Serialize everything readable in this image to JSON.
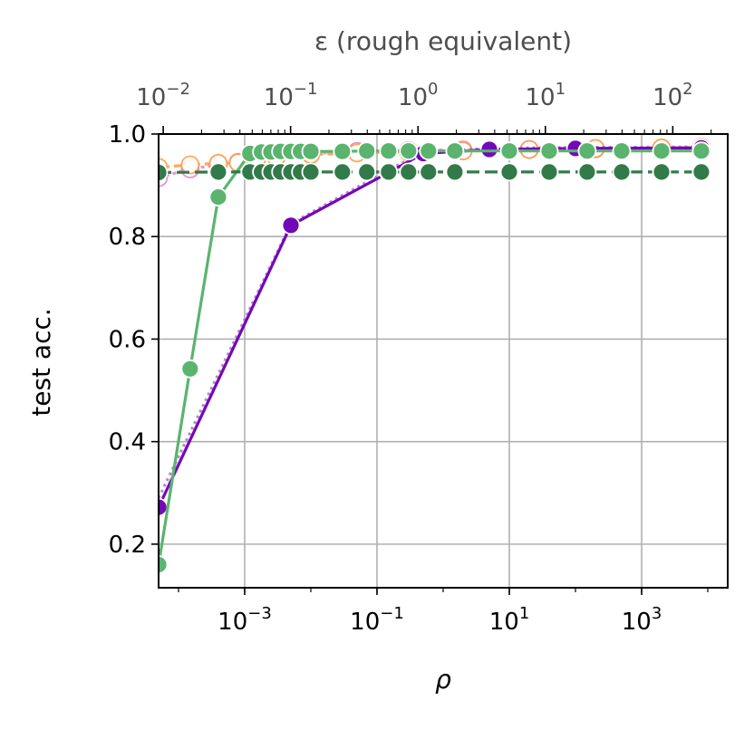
{
  "chart_data": {
    "type": "line",
    "xlabel": "ρ",
    "ylabel": "test acc.",
    "top_xlabel": "ε (rough equivalent)",
    "xscale": "log",
    "xlim": [
      5e-05,
      20000
    ],
    "ylim": [
      0.115,
      1.0
    ],
    "grid": true,
    "yticks": [
      "0.2",
      "0.4",
      "0.6",
      "0.8",
      "1.0"
    ],
    "xtick_exponents": [
      "−3",
      "−1",
      "1",
      "3"
    ],
    "xtick_values": [
      0.001,
      0.1,
      10,
      1000
    ],
    "top_xtick_exponents": [
      "−2",
      "−1",
      "0",
      "1",
      "2"
    ],
    "top_xtick_values": [
      0.01,
      0.1,
      1,
      10,
      100
    ],
    "top_xlim": [
      0.0092,
      270
    ],
    "series": [
      {
        "color": "#e377c2",
        "dash": "4,4",
        "alpha": 0.8,
        "marker_fill": "#ffffff",
        "points": [
          [
            5e-05,
            0.915
          ],
          [
            0.00015,
            0.932
          ],
          [
            0.0004,
            0.94
          ],
          [
            0.0008,
            0.945
          ],
          [
            0.0015,
            0.952
          ],
          [
            0.003,
            0.958
          ],
          [
            0.01,
            0.962
          ],
          [
            0.05,
            0.966
          ],
          [
            0.3,
            0.968
          ],
          [
            2,
            0.969
          ],
          [
            20,
            0.97
          ],
          [
            200,
            0.971
          ],
          [
            2000,
            0.971
          ],
          [
            8000,
            0.972
          ]
        ]
      },
      {
        "color": "#fd9f4a",
        "dash": "12,5",
        "alpha": 0.9,
        "marker_fill": "#ffffff",
        "points": [
          [
            5e-05,
            0.935
          ],
          [
            0.00015,
            0.94
          ],
          [
            0.0004,
            0.943
          ],
          [
            0.0008,
            0.944
          ],
          [
            0.0015,
            0.948
          ],
          [
            0.003,
            0.955
          ],
          [
            0.01,
            0.96
          ],
          [
            0.05,
            0.963
          ],
          [
            0.3,
            0.965
          ],
          [
            2,
            0.967
          ],
          [
            20,
            0.97
          ],
          [
            200,
            0.972
          ],
          [
            2000,
            0.973
          ],
          [
            8000,
            0.974
          ]
        ]
      },
      {
        "color": "#b07cc6",
        "dash": "3,4",
        "alpha": 0.9,
        "marker_fill": null,
        "points": [
          [
            5e-05,
            0.29
          ],
          [
            0.005,
            0.825
          ],
          [
            0.15,
            0.93
          ],
          [
            0.5,
            0.965
          ],
          [
            5,
            0.972
          ],
          [
            100,
            0.974
          ],
          [
            8000,
            0.975
          ]
        ]
      },
      {
        "color": "#7209b7",
        "dash": "",
        "alpha": 1,
        "marker_fill": "#7209b7",
        "points": [
          [
            5e-05,
            0.272
          ],
          [
            0.005,
            0.822
          ],
          [
            0.15,
            0.925
          ],
          [
            0.5,
            0.962
          ],
          [
            5,
            0.97
          ],
          [
            100,
            0.972
          ],
          [
            8000,
            0.973
          ]
        ]
      },
      {
        "color": "#5ab46e",
        "dash": "",
        "alpha": 1,
        "marker_fill": "#5ab46e",
        "points": [
          [
            5e-05,
            0.16
          ],
          [
            0.00015,
            0.542
          ],
          [
            0.0004,
            0.877
          ],
          [
            0.0012,
            0.962
          ],
          [
            0.0018,
            0.965
          ],
          [
            0.0025,
            0.965
          ],
          [
            0.0035,
            0.966
          ],
          [
            0.005,
            0.966
          ],
          [
            0.007,
            0.966
          ],
          [
            0.01,
            0.966
          ],
          [
            0.03,
            0.966
          ],
          [
            0.07,
            0.967
          ],
          [
            0.15,
            0.967
          ],
          [
            0.3,
            0.967
          ],
          [
            0.6,
            0.967
          ],
          [
            1.5,
            0.967
          ],
          [
            10,
            0.967
          ],
          [
            40,
            0.967
          ],
          [
            150,
            0.967
          ],
          [
            500,
            0.967
          ],
          [
            2000,
            0.967
          ],
          [
            8000,
            0.967
          ]
        ]
      },
      {
        "color": "#337a4a",
        "dash": "14,6",
        "alpha": 1,
        "marker_fill": "#337a4a",
        "points": [
          [
            5e-05,
            0.925
          ],
          [
            0.0004,
            0.926
          ],
          [
            0.0012,
            0.926
          ],
          [
            0.0018,
            0.926
          ],
          [
            0.0025,
            0.926
          ],
          [
            0.0035,
            0.926
          ],
          [
            0.005,
            0.926
          ],
          [
            0.007,
            0.926
          ],
          [
            0.01,
            0.926
          ],
          [
            0.03,
            0.926
          ],
          [
            0.07,
            0.926
          ],
          [
            0.15,
            0.926
          ],
          [
            0.3,
            0.926
          ],
          [
            0.6,
            0.926
          ],
          [
            1.5,
            0.926
          ],
          [
            10,
            0.926
          ],
          [
            40,
            0.926
          ],
          [
            150,
            0.926
          ],
          [
            500,
            0.926
          ],
          [
            2000,
            0.926
          ],
          [
            8000,
            0.926
          ]
        ]
      }
    ]
  }
}
